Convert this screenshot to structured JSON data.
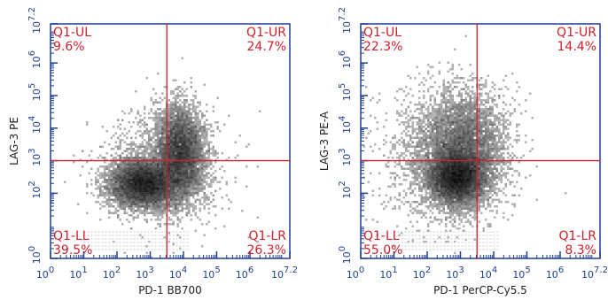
{
  "colors": {
    "axis": "#1f3f8f",
    "gate": "#d0202a",
    "dense": "#111111",
    "sparse": "#cfcfcf"
  },
  "chart_data": [
    {
      "type": "scatter",
      "name": "flow-density-plot-left",
      "xlabel": "PD-1 BB700",
      "ylabel": "LAG-3 PE",
      "xscale": "log",
      "yscale": "log",
      "xlim": [
        0,
        7.2
      ],
      "ylim": [
        0,
        7.2
      ],
      "x_ticks": [
        {
          "base": "10",
          "exp": "0"
        },
        {
          "base": "10",
          "exp": "1"
        },
        {
          "base": "10",
          "exp": "2"
        },
        {
          "base": "10",
          "exp": "3"
        },
        {
          "base": "10",
          "exp": "4"
        },
        {
          "base": "10",
          "exp": "5"
        },
        {
          "base": "10",
          "exp": "6"
        },
        {
          "base": "10",
          "exp": "7.2"
        }
      ],
      "y_ticks": [
        {
          "base": "10",
          "exp": "0"
        },
        {
          "base": "10",
          "exp": "2"
        },
        {
          "base": "10",
          "exp": "3"
        },
        {
          "base": "10",
          "exp": "4"
        },
        {
          "base": "10",
          "exp": "5"
        },
        {
          "base": "10",
          "exp": "6"
        },
        {
          "base": "10",
          "exp": "7.2"
        }
      ],
      "gate": {
        "x": 3.5,
        "y": 3.0
      },
      "quadrants": [
        {
          "name": "Q1-UL",
          "percent": "9.6%"
        },
        {
          "name": "Q1-UR",
          "percent": "24.7%"
        },
        {
          "name": "Q1-LL",
          "percent": "39.5%"
        },
        {
          "name": "Q1-LR",
          "percent": "26.3%"
        }
      ],
      "clusters": [
        {
          "cx": 2.8,
          "cy": 2.3,
          "sx": 0.5,
          "sy": 0.35,
          "weight": 0.5
        },
        {
          "cx": 3.9,
          "cy": 3.2,
          "sx": 0.35,
          "sy": 0.7,
          "weight": 0.4
        },
        {
          "cx": 3.4,
          "cy": 2.8,
          "sx": 0.9,
          "sy": 0.9,
          "weight": 0.1
        }
      ]
    },
    {
      "type": "scatter",
      "name": "flow-density-plot-right",
      "xlabel": "PD-1 PerCP-Cy5.5",
      "ylabel": "LAG-3 PE-A",
      "xscale": "log",
      "yscale": "log",
      "xlim": [
        0,
        7.2
      ],
      "ylim": [
        0,
        7.2
      ],
      "x_ticks": [
        {
          "base": "10",
          "exp": "0"
        },
        {
          "base": "10",
          "exp": "1"
        },
        {
          "base": "10",
          "exp": "2"
        },
        {
          "base": "10",
          "exp": "3"
        },
        {
          "base": "10",
          "exp": "4"
        },
        {
          "base": "10",
          "exp": "5"
        },
        {
          "base": "10",
          "exp": "6"
        },
        {
          "base": "10",
          "exp": "7.2"
        }
      ],
      "y_ticks": [
        {
          "base": "10",
          "exp": "0"
        },
        {
          "base": "10",
          "exp": "2"
        },
        {
          "base": "10",
          "exp": "3"
        },
        {
          "base": "10",
          "exp": "4"
        },
        {
          "base": "10",
          "exp": "5"
        },
        {
          "base": "10",
          "exp": "6"
        },
        {
          "base": "10",
          "exp": "7.2"
        }
      ],
      "gate": {
        "x": 3.5,
        "y": 3.0
      },
      "quadrants": [
        {
          "name": "Q1-UL",
          "percent": "22.3%"
        },
        {
          "name": "Q1-UR",
          "percent": "14.4%"
        },
        {
          "name": "Q1-LL",
          "percent": "55.0%"
        },
        {
          "name": "Q1-LR",
          "percent": "8.3%"
        }
      ],
      "clusters": [
        {
          "cx": 2.9,
          "cy": 2.5,
          "sx": 0.4,
          "sy": 0.4,
          "weight": 0.55
        },
        {
          "cx": 3.1,
          "cy": 3.5,
          "sx": 0.6,
          "sy": 0.8,
          "weight": 0.3
        },
        {
          "cx": 2.6,
          "cy": 3.0,
          "sx": 0.9,
          "sy": 1.0,
          "weight": 0.15
        }
      ]
    }
  ]
}
